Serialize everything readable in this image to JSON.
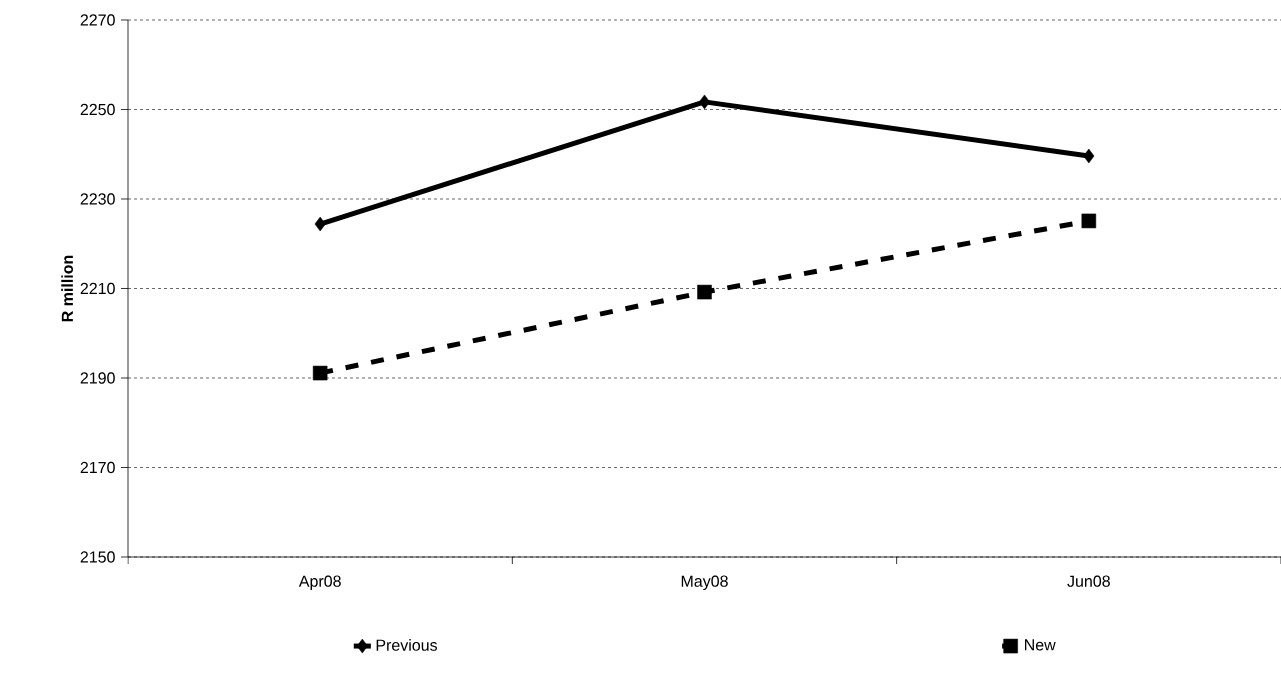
{
  "chart_data": {
    "type": "line",
    "ylabel": "R million",
    "categories": [
      "Apr08",
      "May08",
      "Jun08"
    ],
    "series": [
      {
        "name": "Previous",
        "color": "#000000",
        "marker": "diamond",
        "line_style": "solid",
        "values": [
          2224.4,
          2251.7,
          2239.6
        ]
      },
      {
        "name": "New",
        "color": "#000000",
        "marker": "square",
        "line_style": "dashed",
        "values": [
          2191.1,
          2209.2,
          2225.1
        ]
      }
    ],
    "ylim": [
      2150,
      2270
    ],
    "yticks": [
      2150,
      2170,
      2190,
      2210,
      2230,
      2250,
      2270
    ],
    "grid": "y",
    "legend": "bottom"
  }
}
